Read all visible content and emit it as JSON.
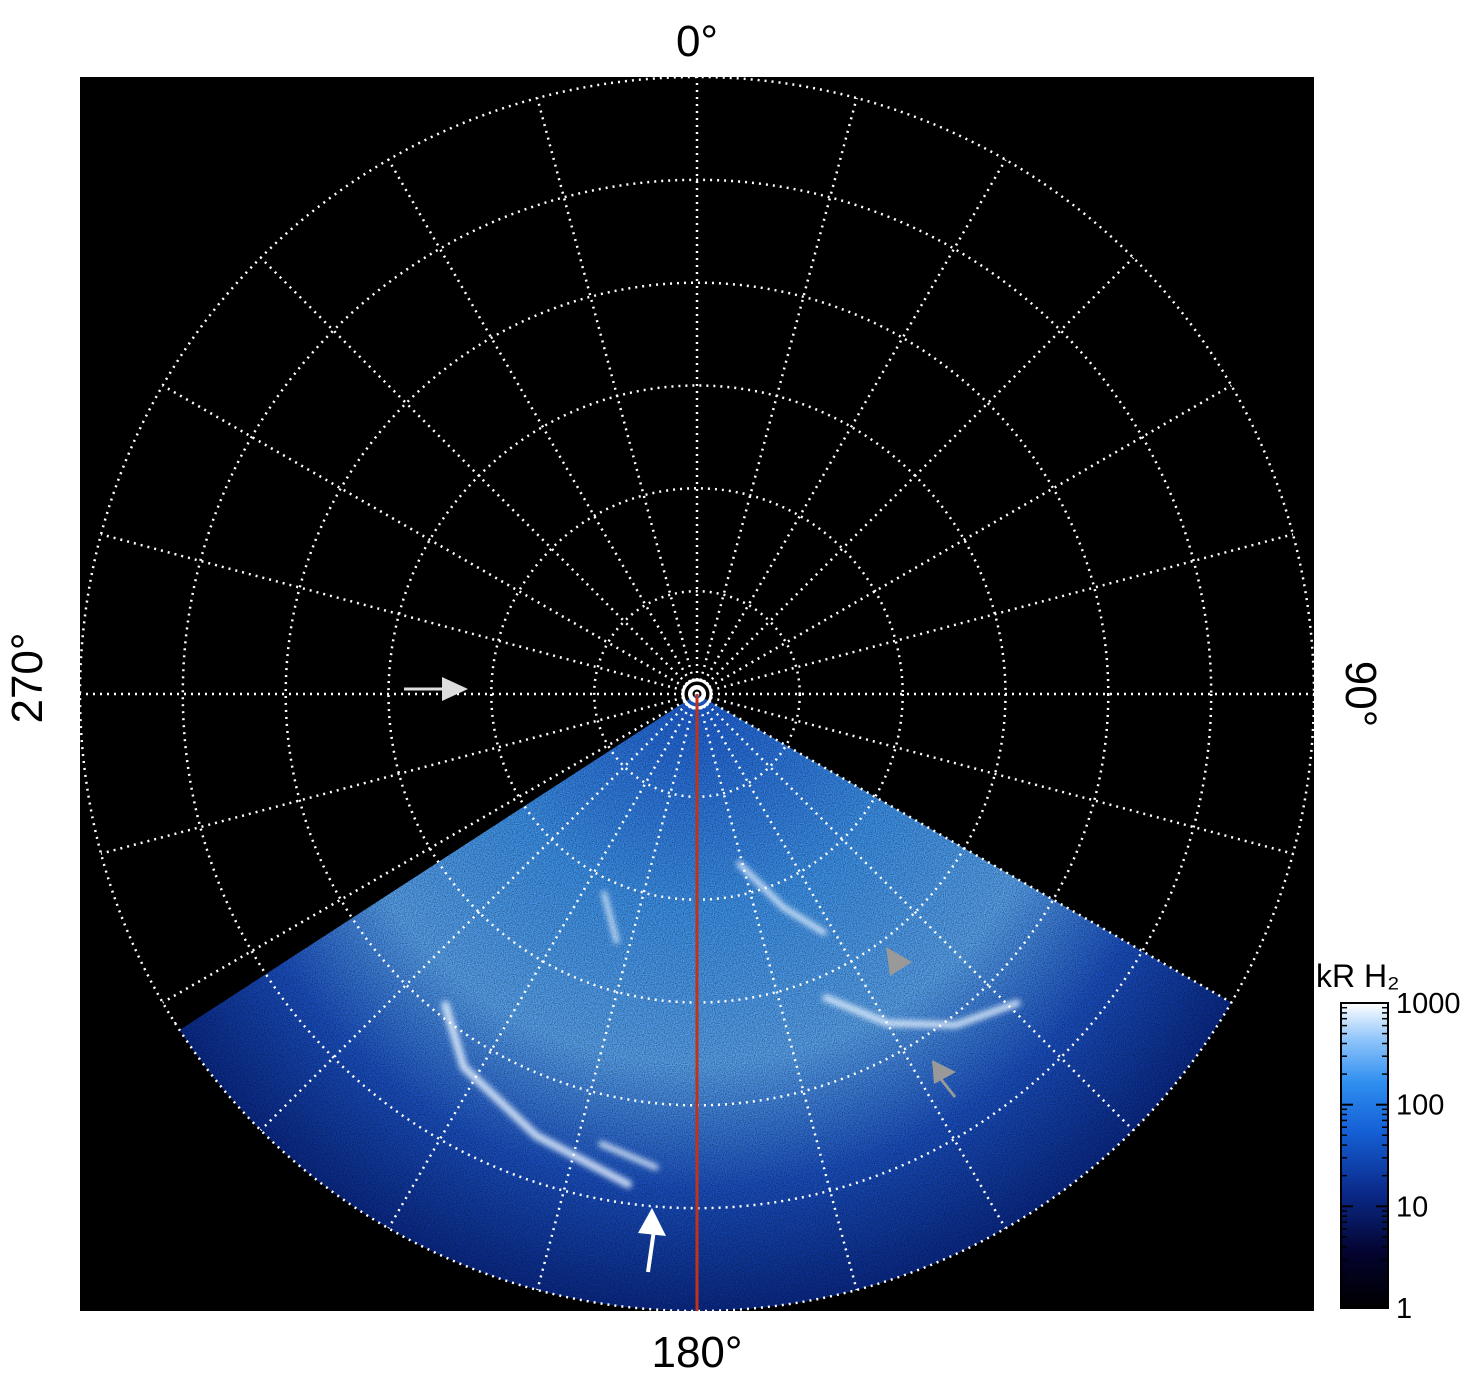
{
  "chart_data": {
    "type": "heatmap",
    "projection": "polar",
    "angle_labels": {
      "top": "0°",
      "right": "90°",
      "bottom": "180°",
      "left": "270°"
    },
    "angular_gridline_step_deg": 15,
    "radial_rings": 6,
    "grid": true,
    "grid_style": "dotted white",
    "reference_line_angle_deg": 180,
    "reference_line_color": "#c0321a",
    "image_sector_deg": [
      120,
      237
    ],
    "colorbar": {
      "title": "kR H₂",
      "scale": "log",
      "ticks": [
        "1000",
        "100",
        "10",
        "1"
      ],
      "range": [
        1,
        1000
      ],
      "colormap": [
        "#000000",
        "#03032e",
        "#0a2a8a",
        "#1560d6",
        "#2f8ff0",
        "#8fc4fa",
        "#ffffff"
      ],
      "placement": "bottom-right"
    },
    "annotations": [
      {
        "kind": "arrow",
        "color": "#dddddd",
        "description": "white arrow pointing toward pole at 270° side"
      },
      {
        "kind": "arrow",
        "color": "#ffffff",
        "description": "white arrow near 180°"
      },
      {
        "kind": "arrow",
        "color": "#999999",
        "description": "gray arrowhead"
      },
      {
        "kind": "arrow",
        "color": "#999999",
        "description": "gray arrow"
      }
    ],
    "colors": {
      "background": "#000000",
      "grid": "#ffffff",
      "emission": "#2f8ff0"
    }
  }
}
